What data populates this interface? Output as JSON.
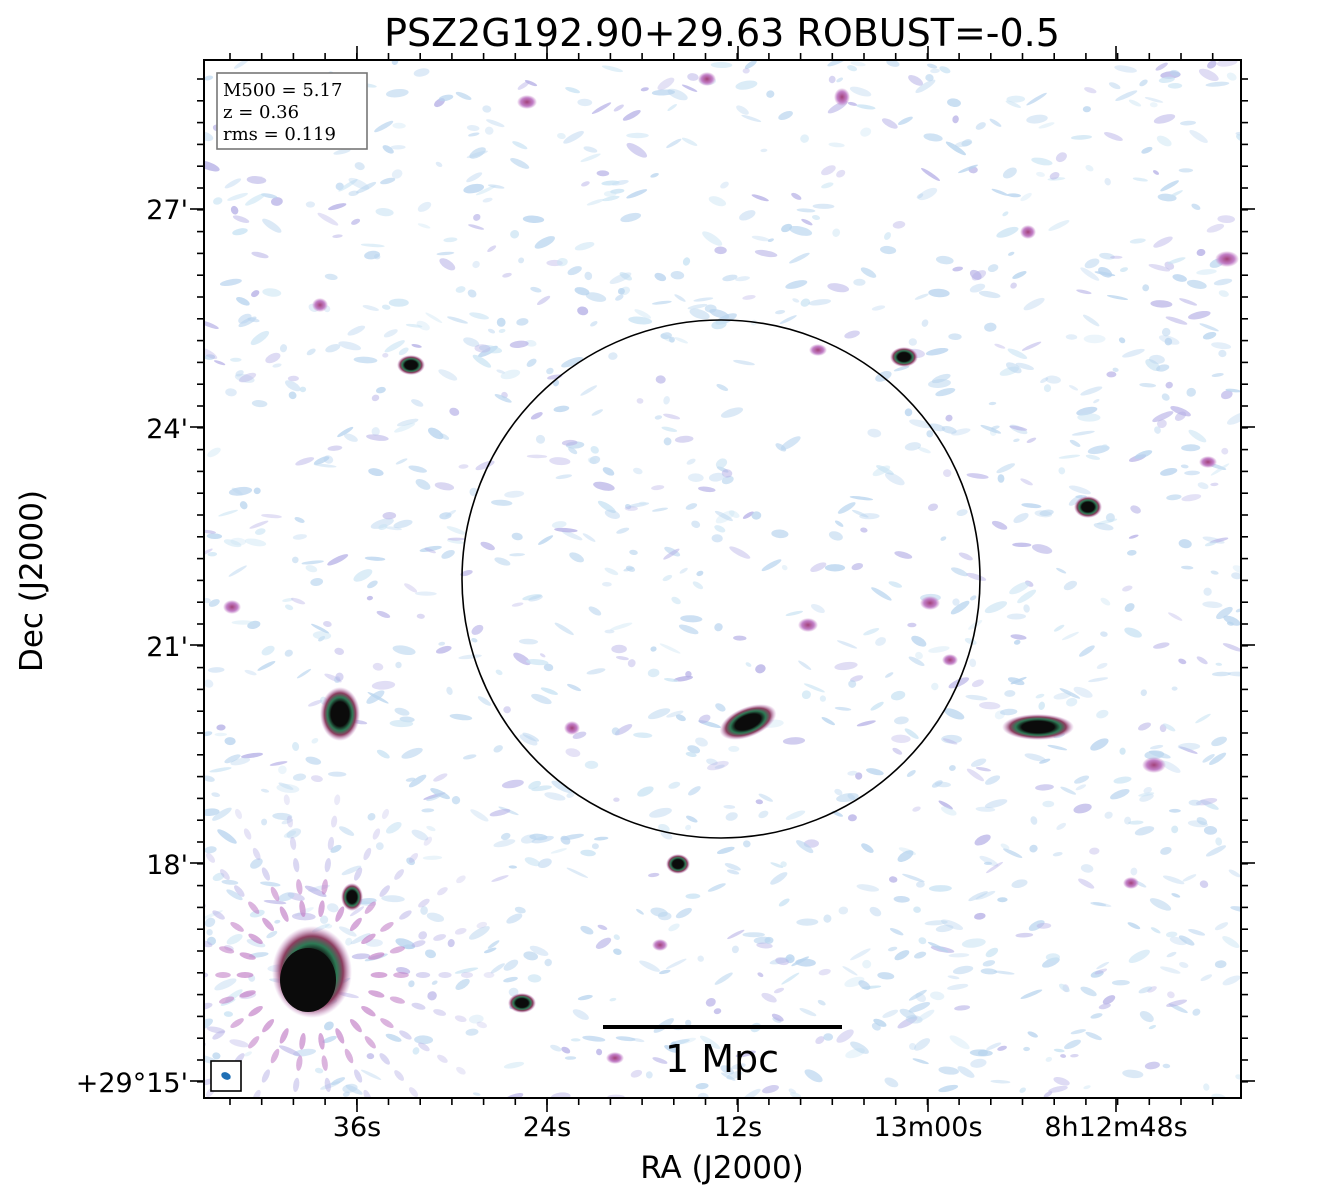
{
  "title": "PSZ2G192.90+29.63 ROBUST=-0.5",
  "info_box": {
    "m500": "M500 = 5.17",
    "z": "z = 0.36",
    "rms": "rms = 0.119"
  },
  "x_axis": {
    "label": "RA (J2000)",
    "ticks": [
      "36s",
      "24s",
      "12s",
      "13m00s",
      "8h12m48s"
    ]
  },
  "y_axis": {
    "label": "Dec (J2000)",
    "ticks": [
      "27'",
      "24'",
      "21'",
      "18'",
      "+29°15'"
    ]
  },
  "scale_bar": {
    "label": "1 Mpc"
  },
  "colors": {
    "noise_light": "#b8d4ee",
    "noise_mid": "#b6b0e6",
    "source_halo": "#c27fc7",
    "source_core": "#0b0b0b",
    "source_ring": "#2d7a55",
    "beam": "#1f6fb5",
    "frame": "#000000"
  }
}
